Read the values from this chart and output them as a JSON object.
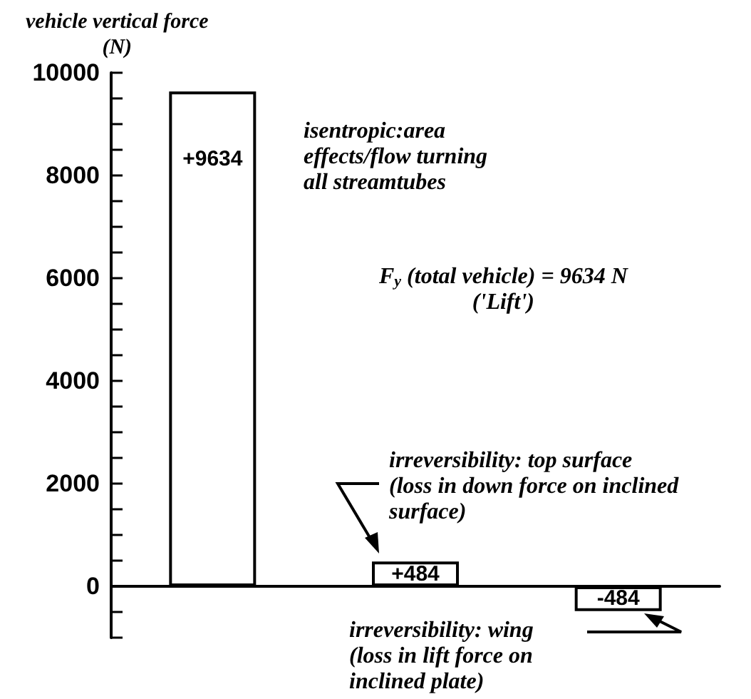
{
  "chart_data": {
    "type": "bar",
    "ylabel": "vehicle vertical force\n(N)",
    "categories": [
      null,
      null,
      null
    ],
    "values": [
      9634,
      484,
      -484
    ],
    "value_labels": [
      "+9634",
      "+484",
      "-484"
    ],
    "color": "#ffffff",
    "ylim": [
      -1000,
      10000
    ],
    "yticks": [
      {
        "value": -1000,
        "label": null
      },
      {
        "value": -500,
        "label": null
      },
      0,
      {
        "value": 500,
        "label": null
      },
      {
        "value": 1000,
        "label": null
      },
      {
        "value": 1500,
        "label": null
      },
      2000,
      {
        "value": 2500,
        "label": null
      },
      {
        "value": 3000,
        "label": null
      },
      {
        "value": 3500,
        "label": null
      },
      4000,
      {
        "value": 4500,
        "label": null
      },
      {
        "value": 5000,
        "label": null
      },
      {
        "value": 5500,
        "label": null
      },
      6000,
      {
        "value": 6500,
        "label": null
      },
      {
        "value": 7000,
        "label": null
      },
      {
        "value": 7500,
        "label": null
      },
      8000,
      {
        "value": 8500,
        "label": null
      },
      {
        "value": 9000,
        "label": null
      },
      {
        "value": 9500,
        "label": null
      },
      10000
    ],
    "tick_labels": "y",
    "annotations": [
      "isentropic:area\neffects/flow turning\nall streamtubes",
      "F$_{y}$ (total vehicle) = 9634 N\n('Lift')",
      "irreversibility: top surface\n(loss in down force on inclined\nsurface)",
      "irreversibility: wing\n(loss in lift force on\ninclined plate)"
    ]
  }
}
